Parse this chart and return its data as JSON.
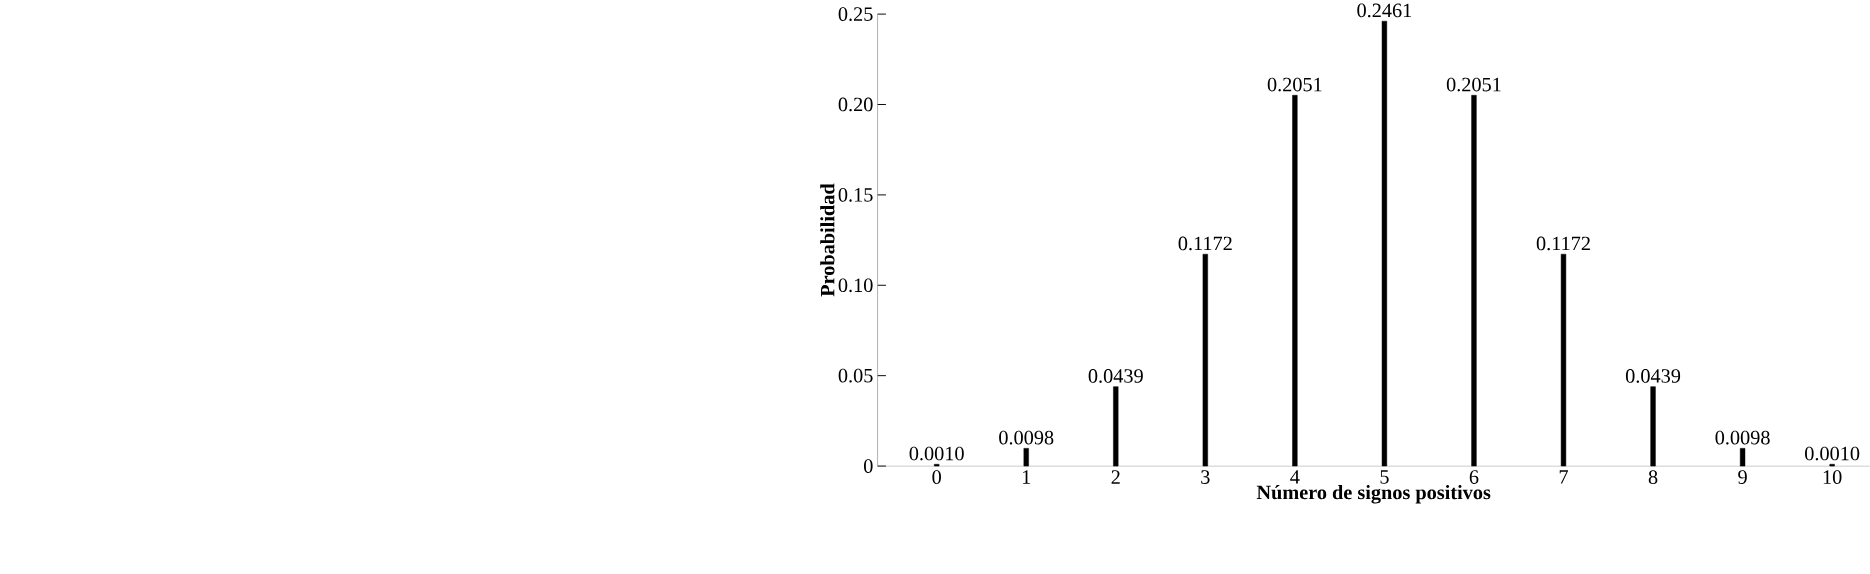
{
  "chart_data": {
    "type": "bar",
    "xlabel": "Número de signos positivos",
    "ylabel": "Probabilidad",
    "categories": [
      "0",
      "1",
      "2",
      "3",
      "4",
      "5",
      "6",
      "7",
      "8",
      "9",
      "10"
    ],
    "values": [
      0.001,
      0.0098,
      0.0439,
      0.1172,
      0.2051,
      0.2461,
      0.2051,
      0.1172,
      0.0439,
      0.0098,
      0.001
    ],
    "value_labels": [
      "0.0010",
      "0.0098",
      "0.0439",
      "0.1172",
      "0.2051",
      "0.2461",
      "0.2051",
      "0.1172",
      "0.0439",
      "0.0098",
      "0.0010"
    ],
    "color": "#000000",
    "ylim": [
      0,
      0.25
    ],
    "yticks": [
      0,
      0.05,
      {
        "value": 0.1,
        "label": "0.10"
      },
      0.15,
      {
        "value": 0.2,
        "label": "0.20"
      },
      0.25
    ],
    "grid": false
  }
}
